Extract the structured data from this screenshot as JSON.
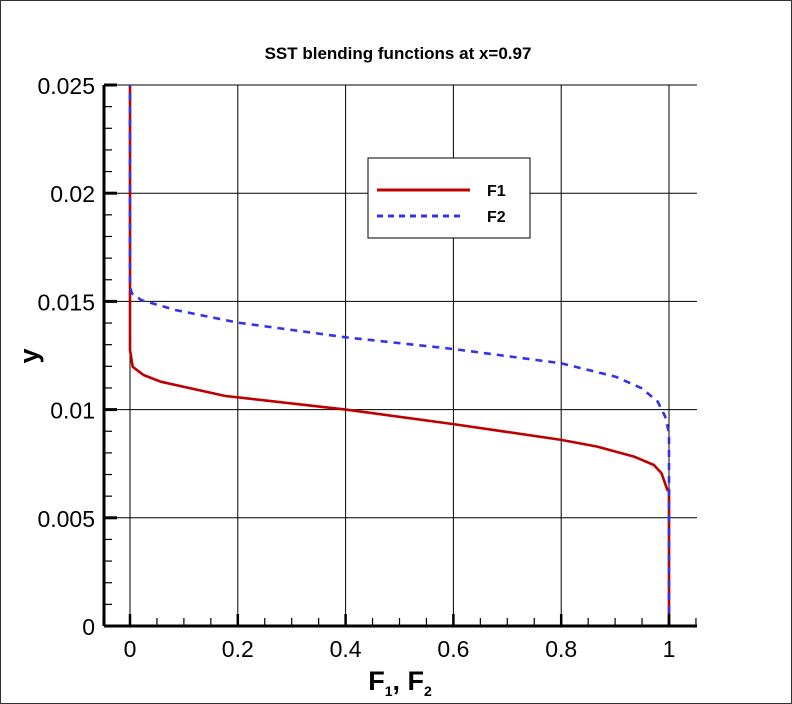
{
  "chart_data": {
    "type": "line",
    "title": "SST blending functions at x=0.97",
    "xlabel": {
      "main1": "F",
      "sub1": "1",
      "sep": ", ",
      "main2": "F",
      "sub2": "2"
    },
    "ylabel": "y",
    "xlim": [
      -0.05,
      1.05
    ],
    "ylim": [
      0,
      0.025
    ],
    "xticks": [
      "0",
      "0.2",
      "0.4",
      "0.6",
      "0.8",
      "1"
    ],
    "xtick_values": [
      0,
      0.2,
      0.4,
      0.6,
      0.8,
      1
    ],
    "yticks": [
      "0",
      "0.005",
      "0.01",
      "0.015",
      "0.02",
      "0.025"
    ],
    "ytick_values": [
      0,
      0.005,
      0.01,
      0.015,
      0.02,
      0.025
    ],
    "grid": true,
    "legend_placement": "upper-center",
    "series": [
      {
        "name": "F1",
        "color": "#c00000",
        "style": "solid",
        "points": [
          [
            1,
            0
          ],
          [
            1,
            0.0063
          ],
          [
            0.997,
            0.00628
          ],
          [
            0.986,
            0.00706
          ],
          [
            0.972,
            0.00744
          ],
          [
            0.936,
            0.00782
          ],
          [
            0.867,
            0.00829
          ],
          [
            0.8,
            0.0086
          ],
          [
            0.6,
            0.00933
          ],
          [
            0.4,
            0.01
          ],
          [
            0.2,
            0.01057
          ],
          [
            0.177,
            0.01063
          ],
          [
            0.057,
            0.01129
          ],
          [
            0.025,
            0.0116
          ],
          [
            0.005,
            0.01198
          ],
          [
            0,
            0.01275
          ],
          [
            0,
            0.025
          ]
        ]
      },
      {
        "name": "F2",
        "color": "#3333ee",
        "style": "dashed",
        "points": [
          [
            1,
            0
          ],
          [
            1,
            0.00892
          ],
          [
            0.993,
            0.00967
          ],
          [
            0.979,
            0.01037
          ],
          [
            0.95,
            0.01098
          ],
          [
            0.901,
            0.01152
          ],
          [
            0.8,
            0.01214
          ],
          [
            0.6,
            0.0128
          ],
          [
            0.4,
            0.01334
          ],
          [
            0.2,
            0.01402
          ],
          [
            0.085,
            0.0146
          ],
          [
            0.021,
            0.01506
          ],
          [
            0.0035,
            0.01537
          ],
          [
            0,
            0.01568
          ],
          [
            0,
            0.025
          ]
        ]
      }
    ]
  }
}
